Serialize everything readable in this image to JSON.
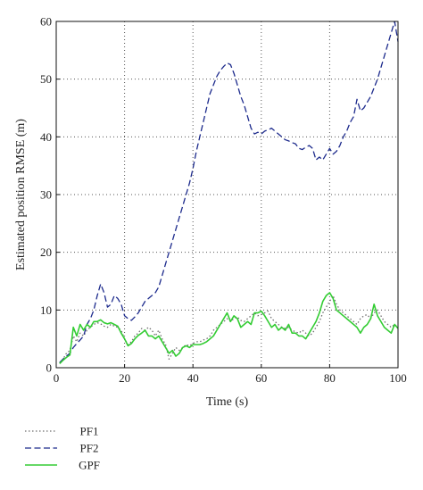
{
  "chart_data": {
    "type": "line",
    "xlabel": "Time (s)",
    "ylabel": "Estimated position RMSE (m)",
    "xlim": [
      0,
      100
    ],
    "ylim": [
      0,
      60
    ],
    "x_ticks": [
      0,
      20,
      40,
      60,
      80,
      100
    ],
    "y_ticks": [
      0,
      10,
      20,
      30,
      40,
      50,
      60
    ],
    "grid": true,
    "legend_position": "below",
    "series": [
      {
        "name": "PF1",
        "color": "#6e6e6e",
        "style": "dotted",
        "x": [
          1,
          2,
          3,
          4,
          5,
          6,
          7,
          8,
          9,
          10,
          11,
          12,
          13,
          14,
          15,
          16,
          17,
          18,
          19,
          20,
          21,
          22,
          23,
          24,
          25,
          26,
          27,
          28,
          29,
          30,
          31,
          32,
          33,
          34,
          35,
          36,
          37,
          38,
          39,
          40,
          41,
          42,
          43,
          44,
          45,
          46,
          47,
          48,
          49,
          50,
          51,
          52,
          53,
          54,
          55,
          56,
          57,
          58,
          59,
          60,
          61,
          62,
          63,
          64,
          65,
          66,
          67,
          68,
          69,
          70,
          71,
          72,
          73,
          74,
          75,
          76,
          77,
          78,
          79,
          80,
          81,
          82,
          83,
          84,
          85,
          86,
          87,
          88,
          89,
          90,
          91,
          92,
          93,
          94,
          95,
          96,
          97,
          98,
          99,
          100
        ],
        "values": [
          0.8,
          1.5,
          2.5,
          3.0,
          5.5,
          4.5,
          6.0,
          5.5,
          6.5,
          7.0,
          7.5,
          7.8,
          7.6,
          7.2,
          7.0,
          7.5,
          7.2,
          7.0,
          6.5,
          5.0,
          4.0,
          4.5,
          5.5,
          6.0,
          6.8,
          6.5,
          7.0,
          6.5,
          5.5,
          6.5,
          5.0,
          4.0,
          1.5,
          2.5,
          3.5,
          3.0,
          3.5,
          4.0,
          3.8,
          4.2,
          4.5,
          4.5,
          4.8,
          5.0,
          5.5,
          6.5,
          7.0,
          7.5,
          8.0,
          8.5,
          8.0,
          8.5,
          8.8,
          8.2,
          8.0,
          8.5,
          9.0,
          9.5,
          9.0,
          9.2,
          9.5,
          9.8,
          8.5,
          8.0,
          7.5,
          7.0,
          6.8,
          7.0,
          6.5,
          6.2,
          6.0,
          6.5,
          6.0,
          5.5,
          6.0,
          7.0,
          8.0,
          9.5,
          10.5,
          11.5,
          12.5,
          11.0,
          10.0,
          9.5,
          9.0,
          8.5,
          8.0,
          7.5,
          8.5,
          9.0,
          9.2,
          8.5,
          9.5,
          10.0,
          9.0,
          8.0,
          7.5,
          7.0,
          7.5,
          7.0
        ]
      },
      {
        "name": "PF2",
        "color": "#1c2a8c",
        "style": "dashed",
        "x": [
          1,
          2,
          3,
          4,
          5,
          6,
          7,
          8,
          9,
          10,
          11,
          12,
          13,
          14,
          15,
          16,
          17,
          18,
          19,
          20,
          21,
          22,
          23,
          24,
          25,
          26,
          27,
          28,
          29,
          30,
          31,
          32,
          33,
          34,
          35,
          36,
          37,
          38,
          39,
          40,
          41,
          42,
          43,
          44,
          45,
          46,
          47,
          48,
          49,
          50,
          51,
          52,
          53,
          54,
          55,
          56,
          57,
          58,
          59,
          60,
          61,
          62,
          63,
          64,
          65,
          66,
          67,
          68,
          69,
          70,
          71,
          72,
          73,
          74,
          75,
          76,
          77,
          78,
          79,
          80,
          81,
          82,
          83,
          84,
          85,
          86,
          87,
          88,
          89,
          90,
          91,
          92,
          93,
          94,
          95,
          96,
          97,
          98,
          99,
          100
        ],
        "values": [
          0.9,
          1.5,
          2.0,
          2.5,
          3.5,
          4.2,
          4.8,
          5.5,
          7.5,
          8.5,
          10.0,
          12.5,
          14.5,
          13.0,
          10.5,
          11.0,
          12.5,
          12.0,
          11.0,
          9.0,
          8.5,
          8.2,
          8.8,
          9.5,
          10.5,
          11.5,
          12.0,
          12.5,
          13.0,
          14.0,
          16.0,
          18.0,
          20.0,
          22.0,
          24.0,
          26.0,
          28.0,
          30.0,
          32.0,
          34.5,
          37.5,
          40.0,
          42.5,
          45.0,
          47.5,
          49.0,
          50.5,
          51.5,
          52.2,
          52.8,
          52.5,
          51.0,
          49.0,
          47.0,
          45.5,
          43.5,
          41.5,
          40.5,
          40.8,
          40.5,
          41.0,
          41.2,
          41.5,
          41.0,
          40.5,
          40.0,
          39.5,
          39.3,
          39.0,
          38.8,
          38.0,
          37.8,
          38.2,
          38.5,
          38.0,
          36.0,
          36.5,
          36.0,
          37.0,
          38.0,
          37.0,
          37.5,
          38.5,
          40.0,
          41.0,
          42.5,
          43.5,
          46.5,
          44.5,
          45.0,
          46.0,
          47.0,
          48.5,
          50.0,
          52.0,
          54.0,
          56.0,
          58.0,
          60.0,
          56.5
        ]
      },
      {
        "name": "GPF",
        "color": "#33cc33",
        "style": "solid",
        "x": [
          1,
          2,
          3,
          4,
          5,
          6,
          7,
          8,
          9,
          10,
          11,
          12,
          13,
          14,
          15,
          16,
          17,
          18,
          19,
          20,
          21,
          22,
          23,
          24,
          25,
          26,
          27,
          28,
          29,
          30,
          31,
          32,
          33,
          34,
          35,
          36,
          37,
          38,
          39,
          40,
          41,
          42,
          43,
          44,
          45,
          46,
          47,
          48,
          49,
          50,
          51,
          52,
          53,
          54,
          55,
          56,
          57,
          58,
          59,
          60,
          61,
          62,
          63,
          64,
          65,
          66,
          67,
          68,
          69,
          70,
          71,
          72,
          73,
          74,
          75,
          76,
          77,
          78,
          79,
          80,
          81,
          82,
          83,
          84,
          85,
          86,
          87,
          88,
          89,
          90,
          91,
          92,
          93,
          94,
          95,
          96,
          97,
          98,
          99,
          100
        ],
        "values": [
          0.7,
          1.3,
          1.8,
          2.2,
          7.0,
          5.5,
          7.5,
          6.5,
          7.5,
          7.0,
          8.0,
          8.0,
          8.3,
          7.8,
          7.6,
          7.8,
          7.5,
          7.2,
          6.0,
          5.0,
          3.8,
          4.2,
          5.0,
          5.6,
          6.0,
          6.5,
          5.5,
          5.5,
          5.0,
          5.5,
          4.5,
          3.5,
          2.5,
          3.0,
          2.0,
          2.5,
          3.5,
          3.8,
          3.5,
          4.0,
          4.0,
          4.0,
          4.2,
          4.5,
          5.0,
          5.5,
          6.5,
          7.5,
          8.5,
          9.5,
          8.0,
          9.0,
          8.5,
          7.0,
          7.5,
          8.0,
          7.5,
          9.5,
          9.5,
          9.8,
          9.0,
          8.0,
          7.0,
          7.5,
          6.5,
          7.0,
          6.5,
          7.5,
          6.0,
          6.0,
          5.5,
          5.5,
          5.0,
          6.0,
          7.0,
          8.0,
          9.5,
          11.5,
          12.5,
          13.0,
          12.0,
          10.0,
          9.5,
          9.0,
          8.5,
          8.0,
          7.5,
          7.0,
          6.0,
          7.0,
          7.5,
          8.5,
          11.0,
          9.0,
          8.0,
          7.0,
          6.5,
          6.0,
          7.5,
          6.8
        ]
      }
    ]
  }
}
